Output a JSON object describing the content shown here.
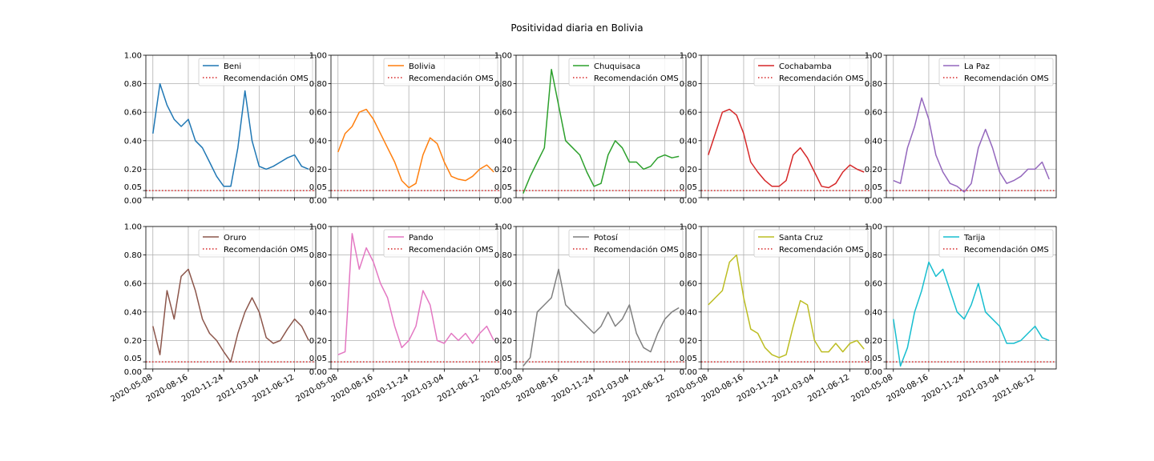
{
  "title": "Positividad diaria en Bolivia",
  "chart_data": {
    "type": "line",
    "layout": "2x5 small multiples, shared x and y axes",
    "ylim": [
      0,
      1
    ],
    "yticks": [
      0.0,
      0.05,
      0.2,
      0.4,
      0.6,
      0.8,
      1.0
    ],
    "ytick_labels": [
      "0.00",
      "0.05",
      "0.20",
      "0.40",
      "0.60",
      "0.80",
      "1.00"
    ],
    "x_start": "2020-05-08",
    "x_end": "2021-07-22",
    "xticks": [
      "2020-05-08",
      "2020-08-16",
      "2020-11-24",
      "2021-03-04",
      "2021-06-12"
    ],
    "grid": true,
    "legend_position": "upper right",
    "reference_line": {
      "label": "Recomendación OMS",
      "value": 0.05,
      "color": "#d62728",
      "style": "dotted"
    },
    "panels": [
      {
        "name": "Beni",
        "color": "#1f77b4",
        "x": [
          "2020-05-08",
          "2020-05-28",
          "2020-06-17",
          "2020-07-07",
          "2020-07-27",
          "2020-08-16",
          "2020-09-05",
          "2020-09-25",
          "2020-10-15",
          "2020-11-04",
          "2020-11-24",
          "2020-12-14",
          "2021-01-03",
          "2021-01-23",
          "2021-02-12",
          "2021-03-04",
          "2021-03-24",
          "2021-04-13",
          "2021-05-03",
          "2021-05-23",
          "2021-06-12",
          "2021-07-02",
          "2021-07-22"
        ],
        "y": [
          0.45,
          0.8,
          0.65,
          0.55,
          0.5,
          0.55,
          0.4,
          0.35,
          0.25,
          0.15,
          0.08,
          0.08,
          0.35,
          0.75,
          0.4,
          0.22,
          0.2,
          0.22,
          0.25,
          0.28,
          0.3,
          0.22,
          0.2
        ]
      },
      {
        "name": "Bolivia",
        "color": "#ff7f0e",
        "x": [
          "2020-05-08",
          "2020-05-28",
          "2020-06-17",
          "2020-07-07",
          "2020-07-27",
          "2020-08-16",
          "2020-09-05",
          "2020-09-25",
          "2020-10-15",
          "2020-11-04",
          "2020-11-24",
          "2020-12-14",
          "2021-01-03",
          "2021-01-23",
          "2021-02-12",
          "2021-03-04",
          "2021-03-24",
          "2021-04-13",
          "2021-05-03",
          "2021-05-23",
          "2021-06-12",
          "2021-07-02",
          "2021-07-22"
        ],
        "y": [
          0.32,
          0.45,
          0.5,
          0.6,
          0.62,
          0.55,
          0.45,
          0.35,
          0.25,
          0.12,
          0.07,
          0.1,
          0.3,
          0.42,
          0.38,
          0.25,
          0.15,
          0.13,
          0.12,
          0.15,
          0.2,
          0.23,
          0.18
        ]
      },
      {
        "name": "Chuquisaca",
        "color": "#2ca02c",
        "x": [
          "2020-05-08",
          "2020-05-28",
          "2020-06-17",
          "2020-07-07",
          "2020-07-27",
          "2020-08-16",
          "2020-09-05",
          "2020-09-25",
          "2020-10-15",
          "2020-11-04",
          "2020-11-24",
          "2020-12-14",
          "2021-01-03",
          "2021-01-23",
          "2021-02-12",
          "2021-03-04",
          "2021-03-24",
          "2021-04-13",
          "2021-05-03",
          "2021-05-23",
          "2021-06-12",
          "2021-07-02",
          "2021-07-22"
        ],
        "y": [
          0.03,
          0.15,
          0.25,
          0.35,
          0.9,
          0.65,
          0.4,
          0.35,
          0.3,
          0.18,
          0.08,
          0.1,
          0.3,
          0.4,
          0.35,
          0.25,
          0.25,
          0.2,
          0.22,
          0.28,
          0.3,
          0.28,
          0.29
        ]
      },
      {
        "name": "Cochabamba",
        "color": "#d62728",
        "x": [
          "2020-05-08",
          "2020-05-28",
          "2020-06-17",
          "2020-07-07",
          "2020-07-27",
          "2020-08-16",
          "2020-09-05",
          "2020-09-25",
          "2020-10-15",
          "2020-11-04",
          "2020-11-24",
          "2020-12-14",
          "2021-01-03",
          "2021-01-23",
          "2021-02-12",
          "2021-03-04",
          "2021-03-24",
          "2021-04-13",
          "2021-05-03",
          "2021-05-23",
          "2021-06-12",
          "2021-07-02",
          "2021-07-22"
        ],
        "y": [
          0.3,
          0.45,
          0.6,
          0.62,
          0.58,
          0.45,
          0.25,
          0.18,
          0.12,
          0.08,
          0.08,
          0.12,
          0.3,
          0.35,
          0.28,
          0.18,
          0.08,
          0.07,
          0.1,
          0.18,
          0.23,
          0.2,
          0.18
        ]
      },
      {
        "name": "La Paz",
        "color": "#9467bd",
        "x": [
          "2020-05-08",
          "2020-05-28",
          "2020-06-17",
          "2020-07-07",
          "2020-07-27",
          "2020-08-16",
          "2020-09-05",
          "2020-09-25",
          "2020-10-15",
          "2020-11-04",
          "2020-11-24",
          "2020-12-14",
          "2021-01-03",
          "2021-01-23",
          "2021-02-12",
          "2021-03-04",
          "2021-03-24",
          "2021-04-13",
          "2021-05-03",
          "2021-05-23",
          "2021-06-12",
          "2021-07-02",
          "2021-07-22"
        ],
        "y": [
          0.12,
          0.1,
          0.35,
          0.5,
          0.7,
          0.55,
          0.3,
          0.18,
          0.1,
          0.08,
          0.04,
          0.1,
          0.35,
          0.48,
          0.35,
          0.18,
          0.1,
          0.12,
          0.15,
          0.2,
          0.2,
          0.25,
          0.13
        ]
      },
      {
        "name": "Oruro",
        "color": "#8c564b",
        "x": [
          "2020-05-08",
          "2020-05-28",
          "2020-06-17",
          "2020-07-07",
          "2020-07-27",
          "2020-08-16",
          "2020-09-05",
          "2020-09-25",
          "2020-10-15",
          "2020-11-04",
          "2020-11-24",
          "2020-12-14",
          "2021-01-03",
          "2021-01-23",
          "2021-02-12",
          "2021-03-04",
          "2021-03-24",
          "2021-04-13",
          "2021-05-03",
          "2021-05-23",
          "2021-06-12",
          "2021-07-02",
          "2021-07-22"
        ],
        "y": [
          0.3,
          0.1,
          0.55,
          0.35,
          0.65,
          0.7,
          0.55,
          0.35,
          0.25,
          0.2,
          0.12,
          0.05,
          0.25,
          0.4,
          0.5,
          0.4,
          0.22,
          0.18,
          0.2,
          0.28,
          0.35,
          0.3,
          0.2
        ]
      },
      {
        "name": "Pando",
        "color": "#e377c2",
        "x": [
          "2020-05-08",
          "2020-05-28",
          "2020-06-17",
          "2020-07-07",
          "2020-07-27",
          "2020-08-16",
          "2020-09-05",
          "2020-09-25",
          "2020-10-15",
          "2020-11-04",
          "2020-11-24",
          "2020-12-14",
          "2021-01-03",
          "2021-01-23",
          "2021-02-12",
          "2021-03-04",
          "2021-03-24",
          "2021-04-13",
          "2021-05-03",
          "2021-05-23",
          "2021-06-12",
          "2021-07-02",
          "2021-07-22"
        ],
        "y": [
          0.1,
          0.12,
          0.95,
          0.7,
          0.85,
          0.75,
          0.6,
          0.5,
          0.3,
          0.15,
          0.2,
          0.3,
          0.55,
          0.45,
          0.2,
          0.18,
          0.25,
          0.2,
          0.25,
          0.18,
          0.25,
          0.3,
          0.2
        ]
      },
      {
        "name": "Potosí",
        "color": "#7f7f7f",
        "x": [
          "2020-05-08",
          "2020-05-28",
          "2020-06-17",
          "2020-07-07",
          "2020-07-27",
          "2020-08-16",
          "2020-09-05",
          "2020-09-25",
          "2020-10-15",
          "2020-11-04",
          "2020-11-24",
          "2020-12-14",
          "2021-01-03",
          "2021-01-23",
          "2021-02-12",
          "2021-03-04",
          "2021-03-24",
          "2021-04-13",
          "2021-05-03",
          "2021-05-23",
          "2021-06-12",
          "2021-07-02",
          "2021-07-22"
        ],
        "y": [
          0.02,
          0.08,
          0.4,
          0.45,
          0.5,
          0.7,
          0.45,
          0.4,
          0.35,
          0.3,
          0.25,
          0.3,
          0.4,
          0.3,
          0.35,
          0.45,
          0.25,
          0.15,
          0.12,
          0.25,
          0.35,
          0.4,
          0.43
        ]
      },
      {
        "name": "Santa Cruz",
        "color": "#bcbd22",
        "x": [
          "2020-05-08",
          "2020-05-28",
          "2020-06-17",
          "2020-07-07",
          "2020-07-27",
          "2020-08-16",
          "2020-09-05",
          "2020-09-25",
          "2020-10-15",
          "2020-11-04",
          "2020-11-24",
          "2020-12-14",
          "2021-01-03",
          "2021-01-23",
          "2021-02-12",
          "2021-03-04",
          "2021-03-24",
          "2021-04-13",
          "2021-05-03",
          "2021-05-23",
          "2021-06-12",
          "2021-07-02",
          "2021-07-22"
        ],
        "y": [
          0.45,
          0.5,
          0.55,
          0.75,
          0.8,
          0.5,
          0.28,
          0.25,
          0.15,
          0.1,
          0.08,
          0.1,
          0.3,
          0.48,
          0.45,
          0.2,
          0.12,
          0.12,
          0.18,
          0.12,
          0.18,
          0.2,
          0.14
        ]
      },
      {
        "name": "Tarija",
        "color": "#17becf",
        "x": [
          "2020-05-08",
          "2020-05-28",
          "2020-06-17",
          "2020-07-07",
          "2020-07-27",
          "2020-08-16",
          "2020-09-05",
          "2020-09-25",
          "2020-10-15",
          "2020-11-04",
          "2020-11-24",
          "2020-12-14",
          "2021-01-03",
          "2021-01-23",
          "2021-02-12",
          "2021-03-04",
          "2021-03-24",
          "2021-04-13",
          "2021-05-03",
          "2021-05-23",
          "2021-06-12",
          "2021-07-02",
          "2021-07-22"
        ],
        "y": [
          0.35,
          0.02,
          0.15,
          0.4,
          0.55,
          0.75,
          0.65,
          0.7,
          0.55,
          0.4,
          0.35,
          0.45,
          0.6,
          0.4,
          0.35,
          0.3,
          0.18,
          0.18,
          0.2,
          0.25,
          0.3,
          0.22,
          0.2
        ]
      }
    ]
  }
}
